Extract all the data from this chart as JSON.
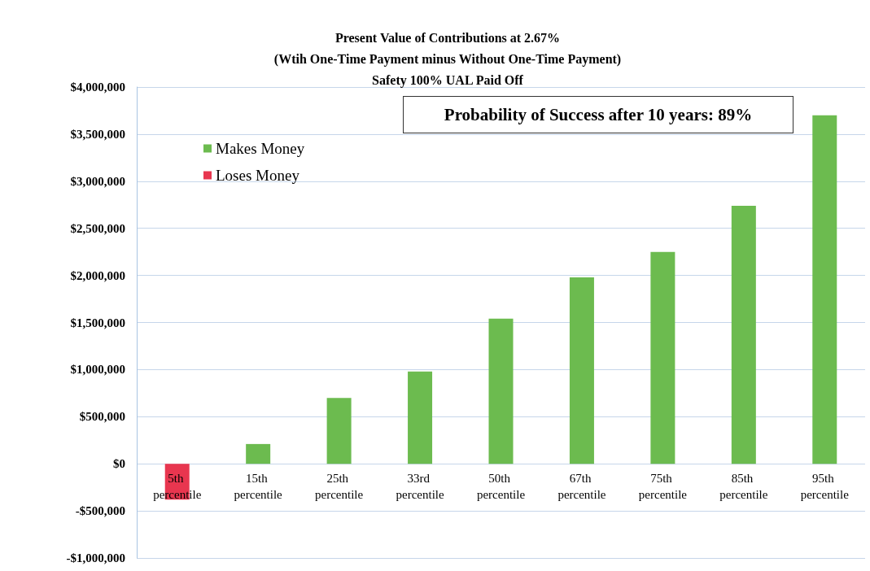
{
  "chart_data": {
    "type": "bar",
    "title": "Present Value of Contributions at 2.67%\n(Wtih One-Time Payment minus Without One-Time Payment)\nSafety 100% UAL Paid Off",
    "categories": [
      "5th percentile",
      "15th percentile",
      "25th percentile",
      "33rd percentile",
      "50th percentile",
      "67th percentile",
      "75th percentile",
      "85th percentile",
      "95th percentile"
    ],
    "stacked": true,
    "series": [
      {
        "name": "Makes Money",
        "color": "#6cbb4f",
        "values": [
          null,
          210000,
          700000,
          980000,
          1540000,
          1980000,
          2250000,
          2740000,
          3700000
        ]
      },
      {
        "name": "Loses Money",
        "color": "#e8364f",
        "values": [
          -380000,
          null,
          null,
          null,
          null,
          null,
          null,
          null,
          null
        ]
      }
    ],
    "ylim": [
      -1000000,
      4000000
    ],
    "yticks": [
      {
        "value": -1000000,
        "label": "-$1,000,000"
      },
      {
        "value": -500000,
        "label": "-$500,000"
      },
      {
        "value": 0,
        "label": "$0"
      },
      {
        "value": 500000,
        "label": "$500,000"
      },
      {
        "value": 1000000,
        "label": "$1,000,000"
      },
      {
        "value": 1500000,
        "label": "$1,500,000"
      },
      {
        "value": 2000000,
        "label": "$2,000,000"
      },
      {
        "value": 2500000,
        "label": "$2,500,000"
      },
      {
        "value": 3000000,
        "label": "$3,000,000"
      },
      {
        "value": 3500000,
        "label": "$3,500,000"
      },
      {
        "value": 4000000,
        "label": "$4,000,000"
      }
    ],
    "grid": "y",
    "legend": "top left",
    "annotations": [
      "Probability of Success after 10 years: 89%"
    ]
  }
}
